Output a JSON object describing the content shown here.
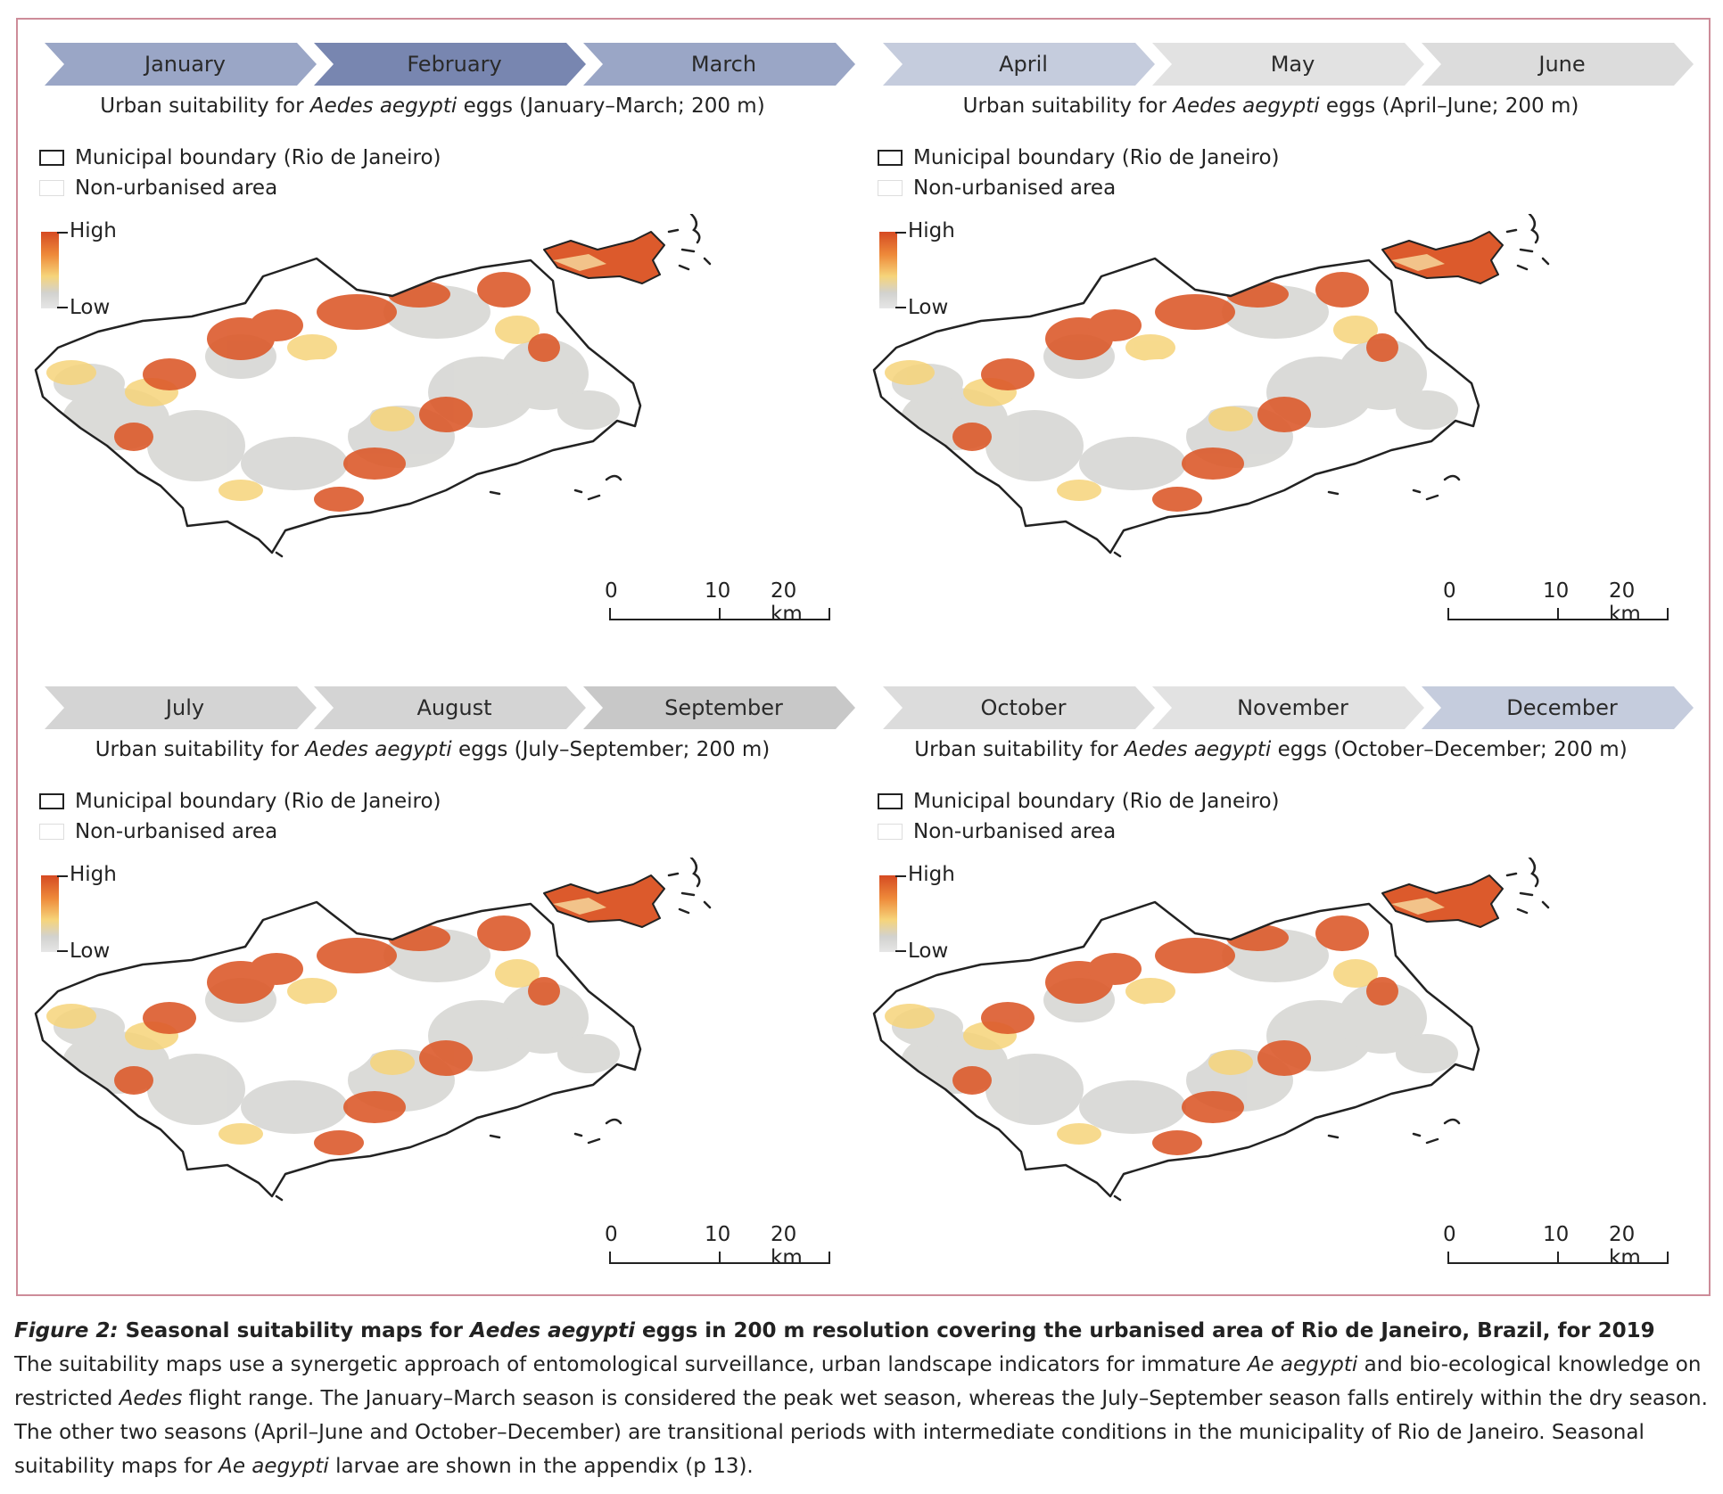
{
  "colors": {
    "frame_border": "#cd8c99",
    "high": "#d54a22",
    "mid": "#f6d47a",
    "low": "#d2d2cf",
    "boundary": "#222222",
    "month_shades": [
      "#9aa6c6",
      "#7886b0",
      "#9aa6c6",
      "#c5ccdd",
      "#e2e2e2",
      "#dcdcdc",
      "#d4d4d4",
      "#d4d4d4",
      "#c8c8c8",
      "#dcdcdc",
      "#e2e2e2",
      "#c5ccdd"
    ]
  },
  "panels": [
    {
      "months": [
        "January",
        "February",
        "March"
      ],
      "title_prefix": "Urban suitability for ",
      "title_species": "Aedes aegypti",
      "title_suffix": " eggs (January–March; 200 m)",
      "legend_boundary": "Municipal boundary (Rio de Janeiro)",
      "legend_nonurban": "Non-urbanised area",
      "colorbar_high": "High",
      "colorbar_low": "Low",
      "scale_labels": [
        "0",
        "10",
        "20 km"
      ]
    },
    {
      "months": [
        "April",
        "May",
        "June"
      ],
      "title_prefix": "Urban suitability for ",
      "title_species": "Aedes aegypti",
      "title_suffix": " eggs (April–June; 200 m)",
      "legend_boundary": "Municipal boundary (Rio de Janeiro)",
      "legend_nonurban": "Non-urbanised area",
      "colorbar_high": "High",
      "colorbar_low": "Low",
      "scale_labels": [
        "0",
        "10",
        "20 km"
      ]
    },
    {
      "months": [
        "July",
        "August",
        "September"
      ],
      "title_prefix": "Urban suitability for ",
      "title_species": "Aedes aegypti",
      "title_suffix": " eggs (July–September; 200 m)",
      "legend_boundary": "Municipal boundary (Rio de Janeiro)",
      "legend_nonurban": "Non-urbanised area",
      "colorbar_high": "High",
      "colorbar_low": "Low",
      "scale_labels": [
        "0",
        "10",
        "20 km"
      ]
    },
    {
      "months": [
        "October",
        "November",
        "December"
      ],
      "title_prefix": "Urban suitability for ",
      "title_species": "Aedes aegypti",
      "title_suffix": " eggs (October–December; 200 m)",
      "legend_boundary": "Municipal boundary (Rio de Janeiro)",
      "legend_nonurban": "Non-urbanised area",
      "colorbar_high": "High",
      "colorbar_low": "Low",
      "scale_labels": [
        "0",
        "10",
        "20 km"
      ]
    }
  ],
  "caption": {
    "label": "Figure 2:",
    "heading_a": " Seasonal suitability maps for ",
    "heading_species": "Aedes aegypti",
    "heading_b": " eggs in 200 m resolution covering the urbanised area of Rio de Janeiro, Brazil, for 2019",
    "body_1": "The suitability maps use a synergetic approach of entomological surveillance, urban landscape indicators for immature ",
    "body_sp1": "Ae aegypti",
    "body_2": " and bio-ecological knowledge on restricted ",
    "body_sp2": "Aedes",
    "body_3": " flight range. The January–March season is considered the peak wet season, whereas the July–September season falls entirely within the dry season. The other two seasons (April–June and October–December) are transitional periods with intermediate conditions in the municipality of Rio de Janeiro. Seasonal suitability maps for ",
    "body_sp3": "Ae aegypti",
    "body_4": " larvae are shown in the appendix (p 13)."
  }
}
